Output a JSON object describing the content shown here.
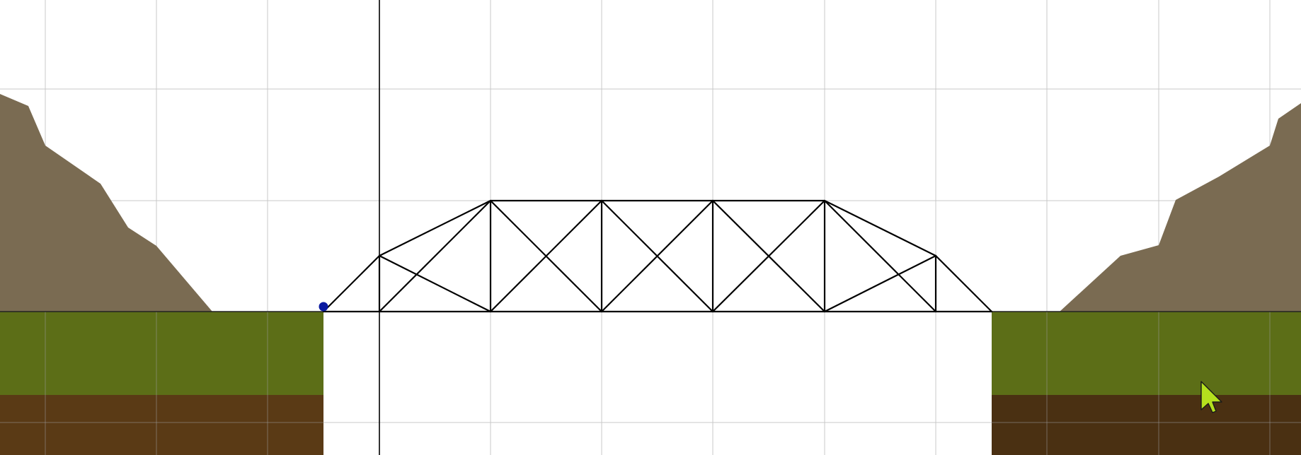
{
  "scene": {
    "name": "bridge-builder-canvas",
    "colors": {
      "background": "#ffffff",
      "grid": "#c8c8c8",
      "cliff": "#7a6b52",
      "grass": "#5c6e17",
      "soil_left": "#5a3a15",
      "soil_right": "#4a3012",
      "member": "#000000",
      "anchor": "#0a1aa0",
      "cursor_fill": "#b4e01e",
      "cursor_stroke": "#1a1a1a"
    },
    "cursor_icon": "arrow-cursor-icon",
    "anchor_icon": "anchor-joint-icon"
  }
}
